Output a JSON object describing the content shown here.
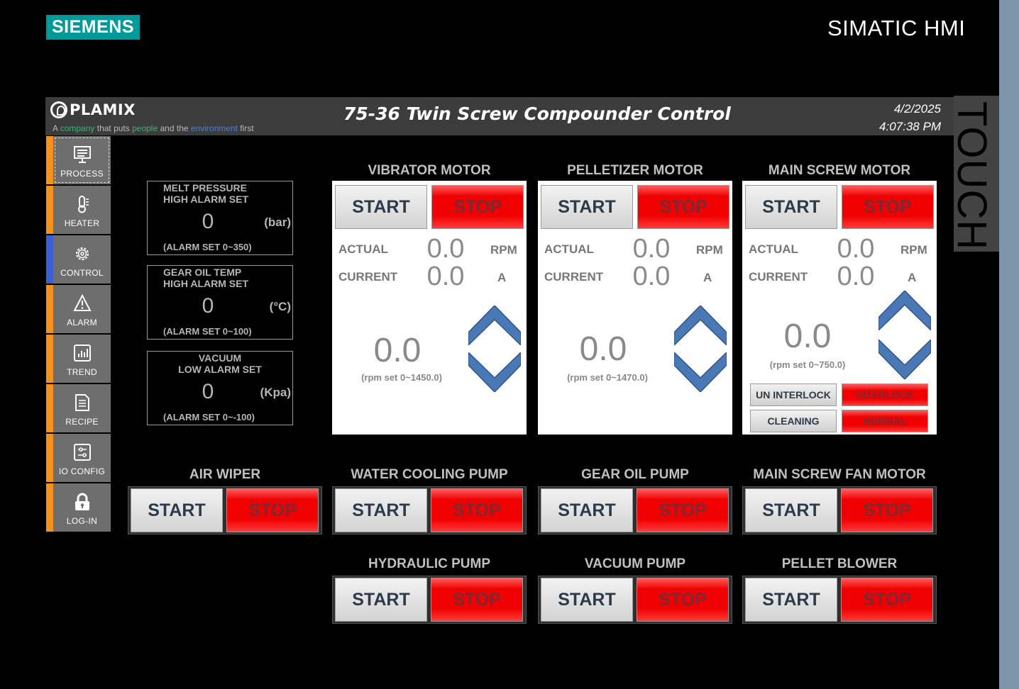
{
  "frame": {
    "brand": "SIEMENS",
    "model": "SIMATIC HMI",
    "touch_label": "TOUCH",
    "colors": {
      "brand": "#009999",
      "side_strip": "#7e94ab"
    }
  },
  "header": {
    "logo": "PLAMIX",
    "tagline": {
      "w1": "A",
      "w2": "company",
      "w3": "that puts",
      "w4": "people",
      "w5": "and the",
      "w6": "environment",
      "w7": "first"
    },
    "title": "75-36 Twin Screw Compounder Control",
    "date": "4/2/2025",
    "time": "4:07:38 PM"
  },
  "nav": {
    "items": [
      {
        "label": "PROCESS",
        "icon": "monitor-icon"
      },
      {
        "label": "HEATER",
        "icon": "thermometer-icon"
      },
      {
        "label": "CONTROL",
        "icon": "gear-icon"
      },
      {
        "label": "ALARM",
        "icon": "warning-icon"
      },
      {
        "label": "TREND",
        "icon": "bar-chart-icon"
      },
      {
        "label": "RECIPE",
        "icon": "document-icon"
      },
      {
        "label": "IO CONFIG",
        "icon": "sliders-icon"
      },
      {
        "label": "LOG-IN",
        "icon": "lock-icon"
      }
    ],
    "colors": {
      "accent": "#f5921e",
      "current": "#3a5fd6"
    }
  },
  "alarms": [
    {
      "title_1": "MELT PRESSURE",
      "title_2": "HIGH ALARM SET",
      "value": "0",
      "unit": "(bar)",
      "range": "(ALARM SET 0~350)"
    },
    {
      "title_1": "GEAR OIL TEMP",
      "title_2": "HIGH ALARM SET",
      "value": "0",
      "unit": "(°C)",
      "range": "(ALARM SET 0~100)"
    },
    {
      "title_1": "VACUUM",
      "title_2": "LOW ALARM SET",
      "value": "0",
      "unit": "(Kpa)",
      "range": "(ALARM SET 0~-100)"
    }
  ],
  "motors": [
    {
      "title": "VIBRATOR MOTOR",
      "start": "START",
      "stop": "STOP",
      "actual_label": "ACTUAL",
      "actual": "0.0",
      "actual_unit": "RPM",
      "current_label": "CURRENT",
      "current": "0.0",
      "current_unit": "A",
      "setpoint": "0.0",
      "range": "(rpm set 0~1450.0)"
    },
    {
      "title": "PELLETIZER MOTOR",
      "start": "START",
      "stop": "STOP",
      "actual_label": "ACTUAL",
      "actual": "0.0",
      "actual_unit": "RPM",
      "current_label": "CURRENT",
      "current": "0.0",
      "current_unit": "A",
      "setpoint": "0.0",
      "range": "(rpm set 0~1470.0)"
    },
    {
      "title": "MAIN SCREW MOTOR",
      "start": "START",
      "stop": "STOP",
      "actual_label": "ACTUAL",
      "actual": "0.0",
      "actual_unit": "RPM",
      "current_label": "CURRENT",
      "current": "0.0",
      "current_unit": "A",
      "setpoint": "0.0",
      "range": "(rpm set 0~750.0)",
      "un_interlock": "UN INTERLOCK",
      "interlock": "INTERLOCK",
      "cleaning": "CLEANING",
      "normal": "NORMAL"
    }
  ],
  "pumps": [
    {
      "title": "AIR WIPER",
      "start": "START",
      "stop": "STOP"
    },
    {
      "title": "WATER COOLING PUMP",
      "start": "START",
      "stop": "STOP"
    },
    {
      "title": "GEAR OIL PUMP",
      "start": "START",
      "stop": "STOP"
    },
    {
      "title": "MAIN SCREW FAN MOTOR",
      "start": "START",
      "stop": "STOP"
    },
    {
      "title": "HYDRAULIC PUMP",
      "start": "START",
      "stop": "STOP"
    },
    {
      "title": "VACUUM PUMP",
      "start": "START",
      "stop": "STOP"
    },
    {
      "title": "PELLET BLOWER",
      "start": "START",
      "stop": "STOP"
    }
  ],
  "colors": {
    "stop": "#f00000",
    "arrow": "#4a78b5"
  }
}
